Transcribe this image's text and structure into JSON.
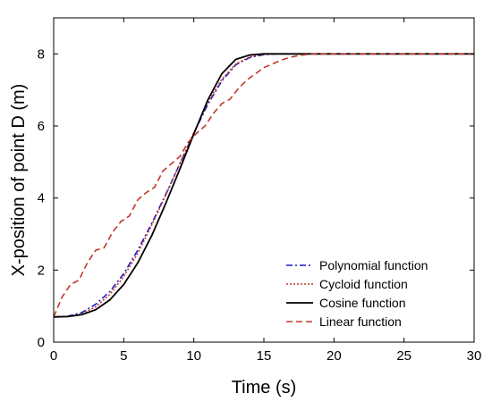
{
  "chart_data": {
    "type": "line",
    "xlabel": "Time (s)",
    "ylabel": "X-position of point D (m)",
    "xlim": [
      0,
      30
    ],
    "ylim": [
      0,
      9
    ],
    "xticks": [
      0,
      5,
      10,
      15,
      20,
      25,
      30
    ],
    "yticks": [
      0,
      2,
      4,
      6,
      8
    ],
    "xtick_labels": [
      "0",
      "5",
      "10",
      "15",
      "20",
      "25",
      "30"
    ],
    "ytick_labels": [
      "0",
      "2",
      "4",
      "6",
      "8"
    ],
    "grid": false,
    "legend_position": "bottom-right",
    "series": [
      {
        "name": "Polynomial function",
        "color": "#1a1acc",
        "style": "dashdot",
        "x": [
          0,
          1,
          2,
          3,
          4,
          5,
          6,
          7,
          8,
          9,
          10,
          11,
          12,
          13,
          14,
          15,
          16,
          17,
          18,
          30
        ],
        "y": [
          0.7,
          0.72,
          0.82,
          1.05,
          1.4,
          1.9,
          2.55,
          3.3,
          4.1,
          4.95,
          5.8,
          6.6,
          7.25,
          7.7,
          7.9,
          7.98,
          8.0,
          8.0,
          8.0,
          8.0
        ]
      },
      {
        "name": "Cycloid function",
        "color": "#c0392b",
        "style": "dotted",
        "x": [
          0,
          1,
          2,
          3,
          4,
          5,
          6,
          7,
          8,
          9,
          10,
          11,
          12,
          13,
          14,
          15,
          16,
          17,
          18,
          30
        ],
        "y": [
          0.7,
          0.71,
          0.78,
          0.98,
          1.32,
          1.82,
          2.47,
          3.25,
          4.08,
          4.95,
          5.82,
          6.65,
          7.3,
          7.72,
          7.92,
          7.99,
          8.0,
          8.0,
          8.0,
          8.0
        ]
      },
      {
        "name": "Cosine function",
        "color": "#000000",
        "style": "solid",
        "x": [
          0,
          1,
          2,
          3,
          4,
          5,
          6,
          7,
          8,
          9,
          10,
          11,
          12,
          13,
          14,
          15,
          16,
          17,
          18,
          30
        ],
        "y": [
          0.7,
          0.71,
          0.76,
          0.9,
          1.17,
          1.6,
          2.2,
          2.96,
          3.85,
          4.8,
          5.78,
          6.72,
          7.45,
          7.85,
          7.97,
          8.0,
          8.0,
          8.0,
          8.0,
          8.0
        ]
      },
      {
        "name": "Linear function",
        "color": "#c0392b",
        "style": "dashed",
        "x": [
          0,
          0.6,
          1.2,
          1.8,
          2.4,
          3.0,
          3.6,
          4.2,
          4.8,
          5.4,
          6.0,
          6.6,
          7.2,
          7.8,
          8.4,
          9.0,
          9.6,
          10.2,
          10.8,
          11.4,
          12.0,
          12.6,
          13.2,
          13.8,
          14.4,
          15.0,
          15.6,
          16.2,
          16.8,
          17.4,
          18.0,
          18.6,
          19.2,
          30
        ],
        "y": [
          0.7,
          1.25,
          1.6,
          1.72,
          2.2,
          2.55,
          2.62,
          3.05,
          3.35,
          3.5,
          3.95,
          4.15,
          4.3,
          4.75,
          4.95,
          5.15,
          5.55,
          5.8,
          6.0,
          6.35,
          6.62,
          6.75,
          7.05,
          7.28,
          7.45,
          7.62,
          7.72,
          7.82,
          7.9,
          7.95,
          7.98,
          8.0,
          8.0,
          8.0
        ]
      }
    ]
  }
}
